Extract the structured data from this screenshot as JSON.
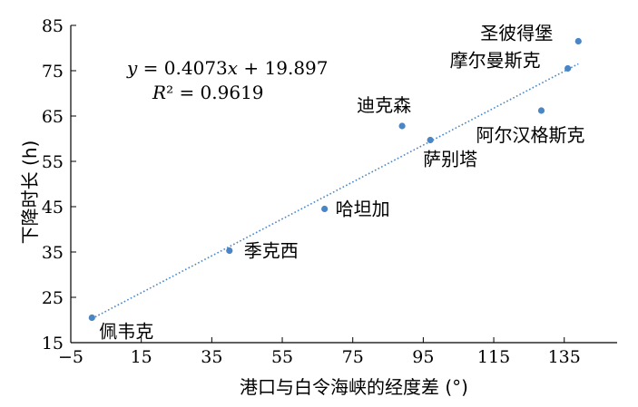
{
  "chart_data": {
    "type": "scatter",
    "xlabel": "港口与白令海峡的经度差 (°)",
    "ylabel": "下降时长 (h)",
    "xlim": [
      -5,
      150
    ],
    "ylim": [
      15,
      85
    ],
    "x_ticks": [
      -5,
      15,
      35,
      55,
      75,
      95,
      115,
      135
    ],
    "y_ticks": [
      15,
      25,
      35,
      45,
      55,
      65,
      75,
      85
    ],
    "x_tick_labels": [
      "−5",
      "15",
      "35",
      "55",
      "75",
      "95",
      "115",
      "135"
    ],
    "y_tick_labels": [
      "15",
      "25",
      "35",
      "45",
      "55",
      "65",
      "75",
      "85"
    ],
    "grid": false,
    "marker_color": "#4a86c5",
    "trendline_color": "#4a86c5",
    "points": [
      {
        "label": "佩韦克",
        "x": 1,
        "y": 20.5
      },
      {
        "label": "季克西",
        "x": 40,
        "y": 35.3
      },
      {
        "label": "哈坦加",
        "x": 67,
        "y": 44.5
      },
      {
        "label": "迪克森",
        "x": 89,
        "y": 62.8
      },
      {
        "label": "萨别塔",
        "x": 97,
        "y": 59.7
      },
      {
        "label": "阿尔汉格斯克",
        "x": 128.5,
        "y": 66.2
      },
      {
        "label": "摩尔曼斯克",
        "x": 136,
        "y": 75.5
      },
      {
        "label": "圣彼得堡",
        "x": 139,
        "y": 81.5
      }
    ],
    "trendline": {
      "slope": 0.4073,
      "intercept": 19.897,
      "x_range": [
        1,
        139
      ],
      "style": "dotted",
      "equation_prefix": "y",
      "equation_rest": " = 0.4073",
      "equation_var": "x",
      "equation_tail": " + 19.897",
      "r2_prefix": "R",
      "r2_rest": "² = 0.9619"
    }
  }
}
